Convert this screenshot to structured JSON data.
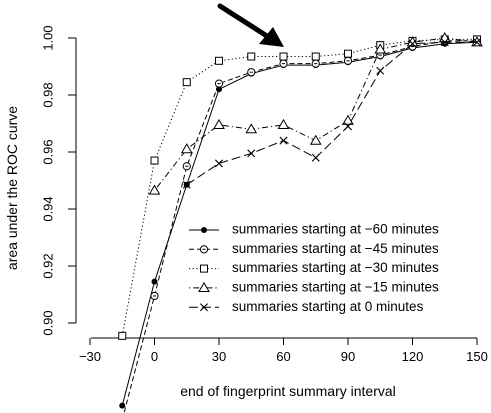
{
  "chart_data": {
    "type": "line",
    "xlabel": "end of fingerprint summary interval",
    "ylabel": "area under the ROC curve",
    "xlim": [
      -30,
      150
    ],
    "ylim": [
      0.9,
      1.0
    ],
    "x_ticks": [
      -30,
      0,
      30,
      60,
      90,
      120,
      150
    ],
    "y_ticks": [
      0.9,
      0.92,
      0.94,
      0.96,
      0.98,
      1.0
    ],
    "y_tick_labels": [
      "0.90",
      "0.92",
      "0.94",
      "0.96",
      "0.98",
      "1.00"
    ],
    "legend_position": "bottom-right",
    "annotation": "arrow pointing to the curves at x = 60",
    "series": [
      {
        "name": "summaries starting at −60 minutes",
        "marker": "filled-circle",
        "dash": "solid",
        "x": [
          -15,
          0,
          15,
          30,
          45,
          60,
          75,
          90,
          105,
          120,
          135,
          150
        ],
        "y": [
          0.871,
          0.9145,
          0.9485,
          0.982,
          0.9875,
          0.9905,
          0.9905,
          0.9915,
          0.9935,
          0.9965,
          0.998,
          0.9985
        ]
      },
      {
        "name": "summaries starting at −45 minutes",
        "marker": "open-circle",
        "dash": "dashed",
        "x": [
          -15,
          0,
          15,
          30,
          45,
          60,
          75,
          90,
          105,
          120,
          135,
          150
        ],
        "y": [
          0.866,
          0.9095,
          0.955,
          0.984,
          0.988,
          0.991,
          0.991,
          0.992,
          0.994,
          0.997,
          0.999,
          0.999
        ]
      },
      {
        "name": "summaries starting at −30 minutes",
        "marker": "open-square",
        "dash": "dotted",
        "x": [
          -15,
          0,
          15,
          30,
          45,
          60,
          75,
          90,
          105,
          120,
          135,
          150
        ],
        "y": [
          0.8955,
          0.957,
          0.9845,
          0.992,
          0.9935,
          0.9935,
          0.9935,
          0.9945,
          0.9975,
          0.999,
          0.9995,
          0.9995
        ]
      },
      {
        "name": "summaries starting at −15 minutes",
        "marker": "open-triangle",
        "dash": "dotdash",
        "x": [
          0,
          15,
          30,
          45,
          60,
          75,
          90,
          105,
          120,
          135,
          150
        ],
        "y": [
          0.9465,
          0.961,
          0.9695,
          0.968,
          0.9695,
          0.964,
          0.971,
          0.996,
          0.9985,
          1.0,
          0.9985
        ]
      },
      {
        "name": "summaries starting at 0 minutes",
        "marker": "cross",
        "dash": "longdash",
        "x": [
          15,
          30,
          45,
          60,
          75,
          90,
          105,
          120,
          135,
          150
        ],
        "y": [
          0.9485,
          0.956,
          0.9595,
          0.964,
          0.958,
          0.969,
          0.9885,
          0.998,
          0.9985,
          0.9985
        ]
      }
    ]
  }
}
